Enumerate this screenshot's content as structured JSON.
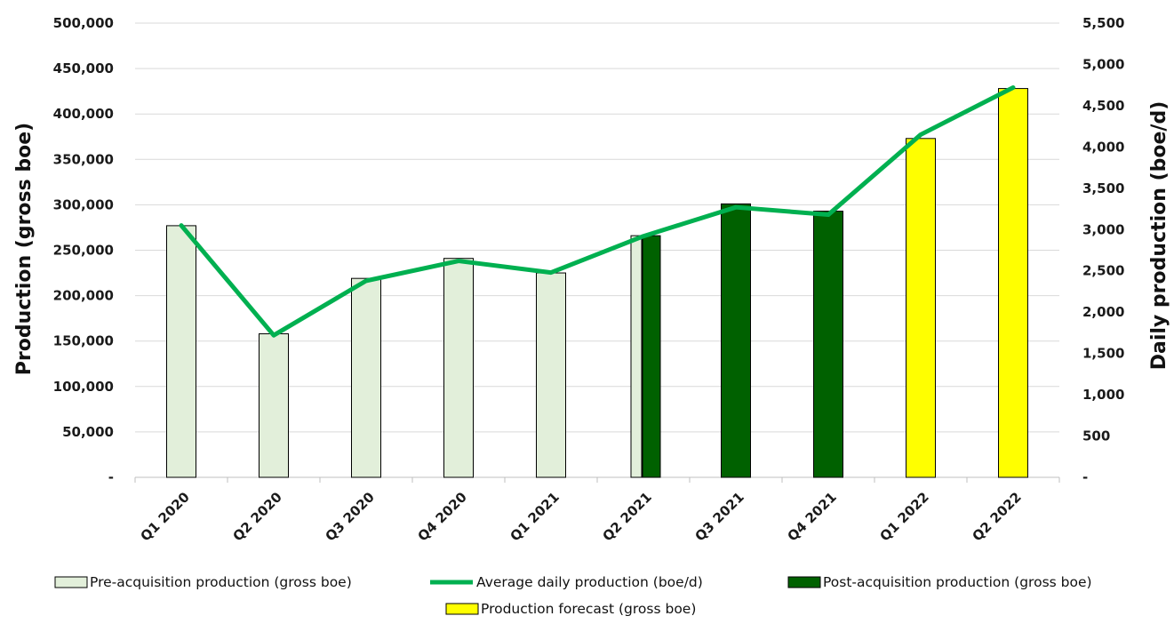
{
  "chart_data": {
    "type": "bar",
    "categories": [
      "Q1 2020",
      "Q2 2020",
      "Q3 2020",
      "Q4 2020",
      "Q1 2021",
      "Q2 2021",
      "Q3 2021",
      "Q4 2021",
      "Q1 2022",
      "Q2 2022"
    ],
    "series": [
      {
        "name": "Pre-acquisition production (gross boe)",
        "type": "bar",
        "axis": "left",
        "color": "#e2efda",
        "values": [
          277000,
          158000,
          219000,
          241000,
          225000,
          266000,
          null,
          null,
          null,
          null
        ]
      },
      {
        "name": "Post-acquisition production (gross boe)",
        "type": "bar",
        "axis": "left",
        "color": "#006100",
        "values": [
          null,
          null,
          null,
          null,
          null,
          266000,
          301000,
          293000,
          null,
          null
        ]
      },
      {
        "name": "Production forecast (gross boe)",
        "type": "bar",
        "axis": "left",
        "color": "#ffff00",
        "values": [
          null,
          null,
          null,
          null,
          null,
          null,
          null,
          null,
          373000,
          428000
        ]
      },
      {
        "name": "Average daily production (boe/d)",
        "type": "line",
        "axis": "right",
        "color": "#00b050",
        "values": [
          3050,
          1720,
          2380,
          2620,
          2480,
          2920,
          3270,
          3180,
          4150,
          4720
        ]
      }
    ],
    "ylabel": "Production (gross boe)",
    "y2label": "Daily production (boe/d)",
    "ylim": [
      0,
      500000
    ],
    "y2lim": [
      0,
      5500
    ],
    "yticks": [
      "-",
      "50,000",
      "100,000",
      "150,000",
      "200,000",
      "250,000",
      "300,000",
      "350,000",
      "400,000",
      "450,000",
      "500,000"
    ],
    "y2ticks": [
      "-",
      "500",
      "1,000",
      "1,500",
      "2,000",
      "2,500",
      "3,000",
      "3,500",
      "4,000",
      "4,500",
      "5,000",
      "5,500"
    ],
    "grid": true,
    "legend_position": "bottom",
    "legend": [
      {
        "label": "Pre-acquisition production (gross boe)",
        "kind": "bar",
        "color": "#e2efda"
      },
      {
        "label": "Average daily production (boe/d)",
        "kind": "line",
        "color": "#00b050"
      },
      {
        "label": "Post-acquisition production (gross boe)",
        "kind": "bar",
        "color": "#006100"
      },
      {
        "label": "Production forecast (gross boe)",
        "kind": "bar",
        "color": "#ffff00"
      }
    ]
  }
}
